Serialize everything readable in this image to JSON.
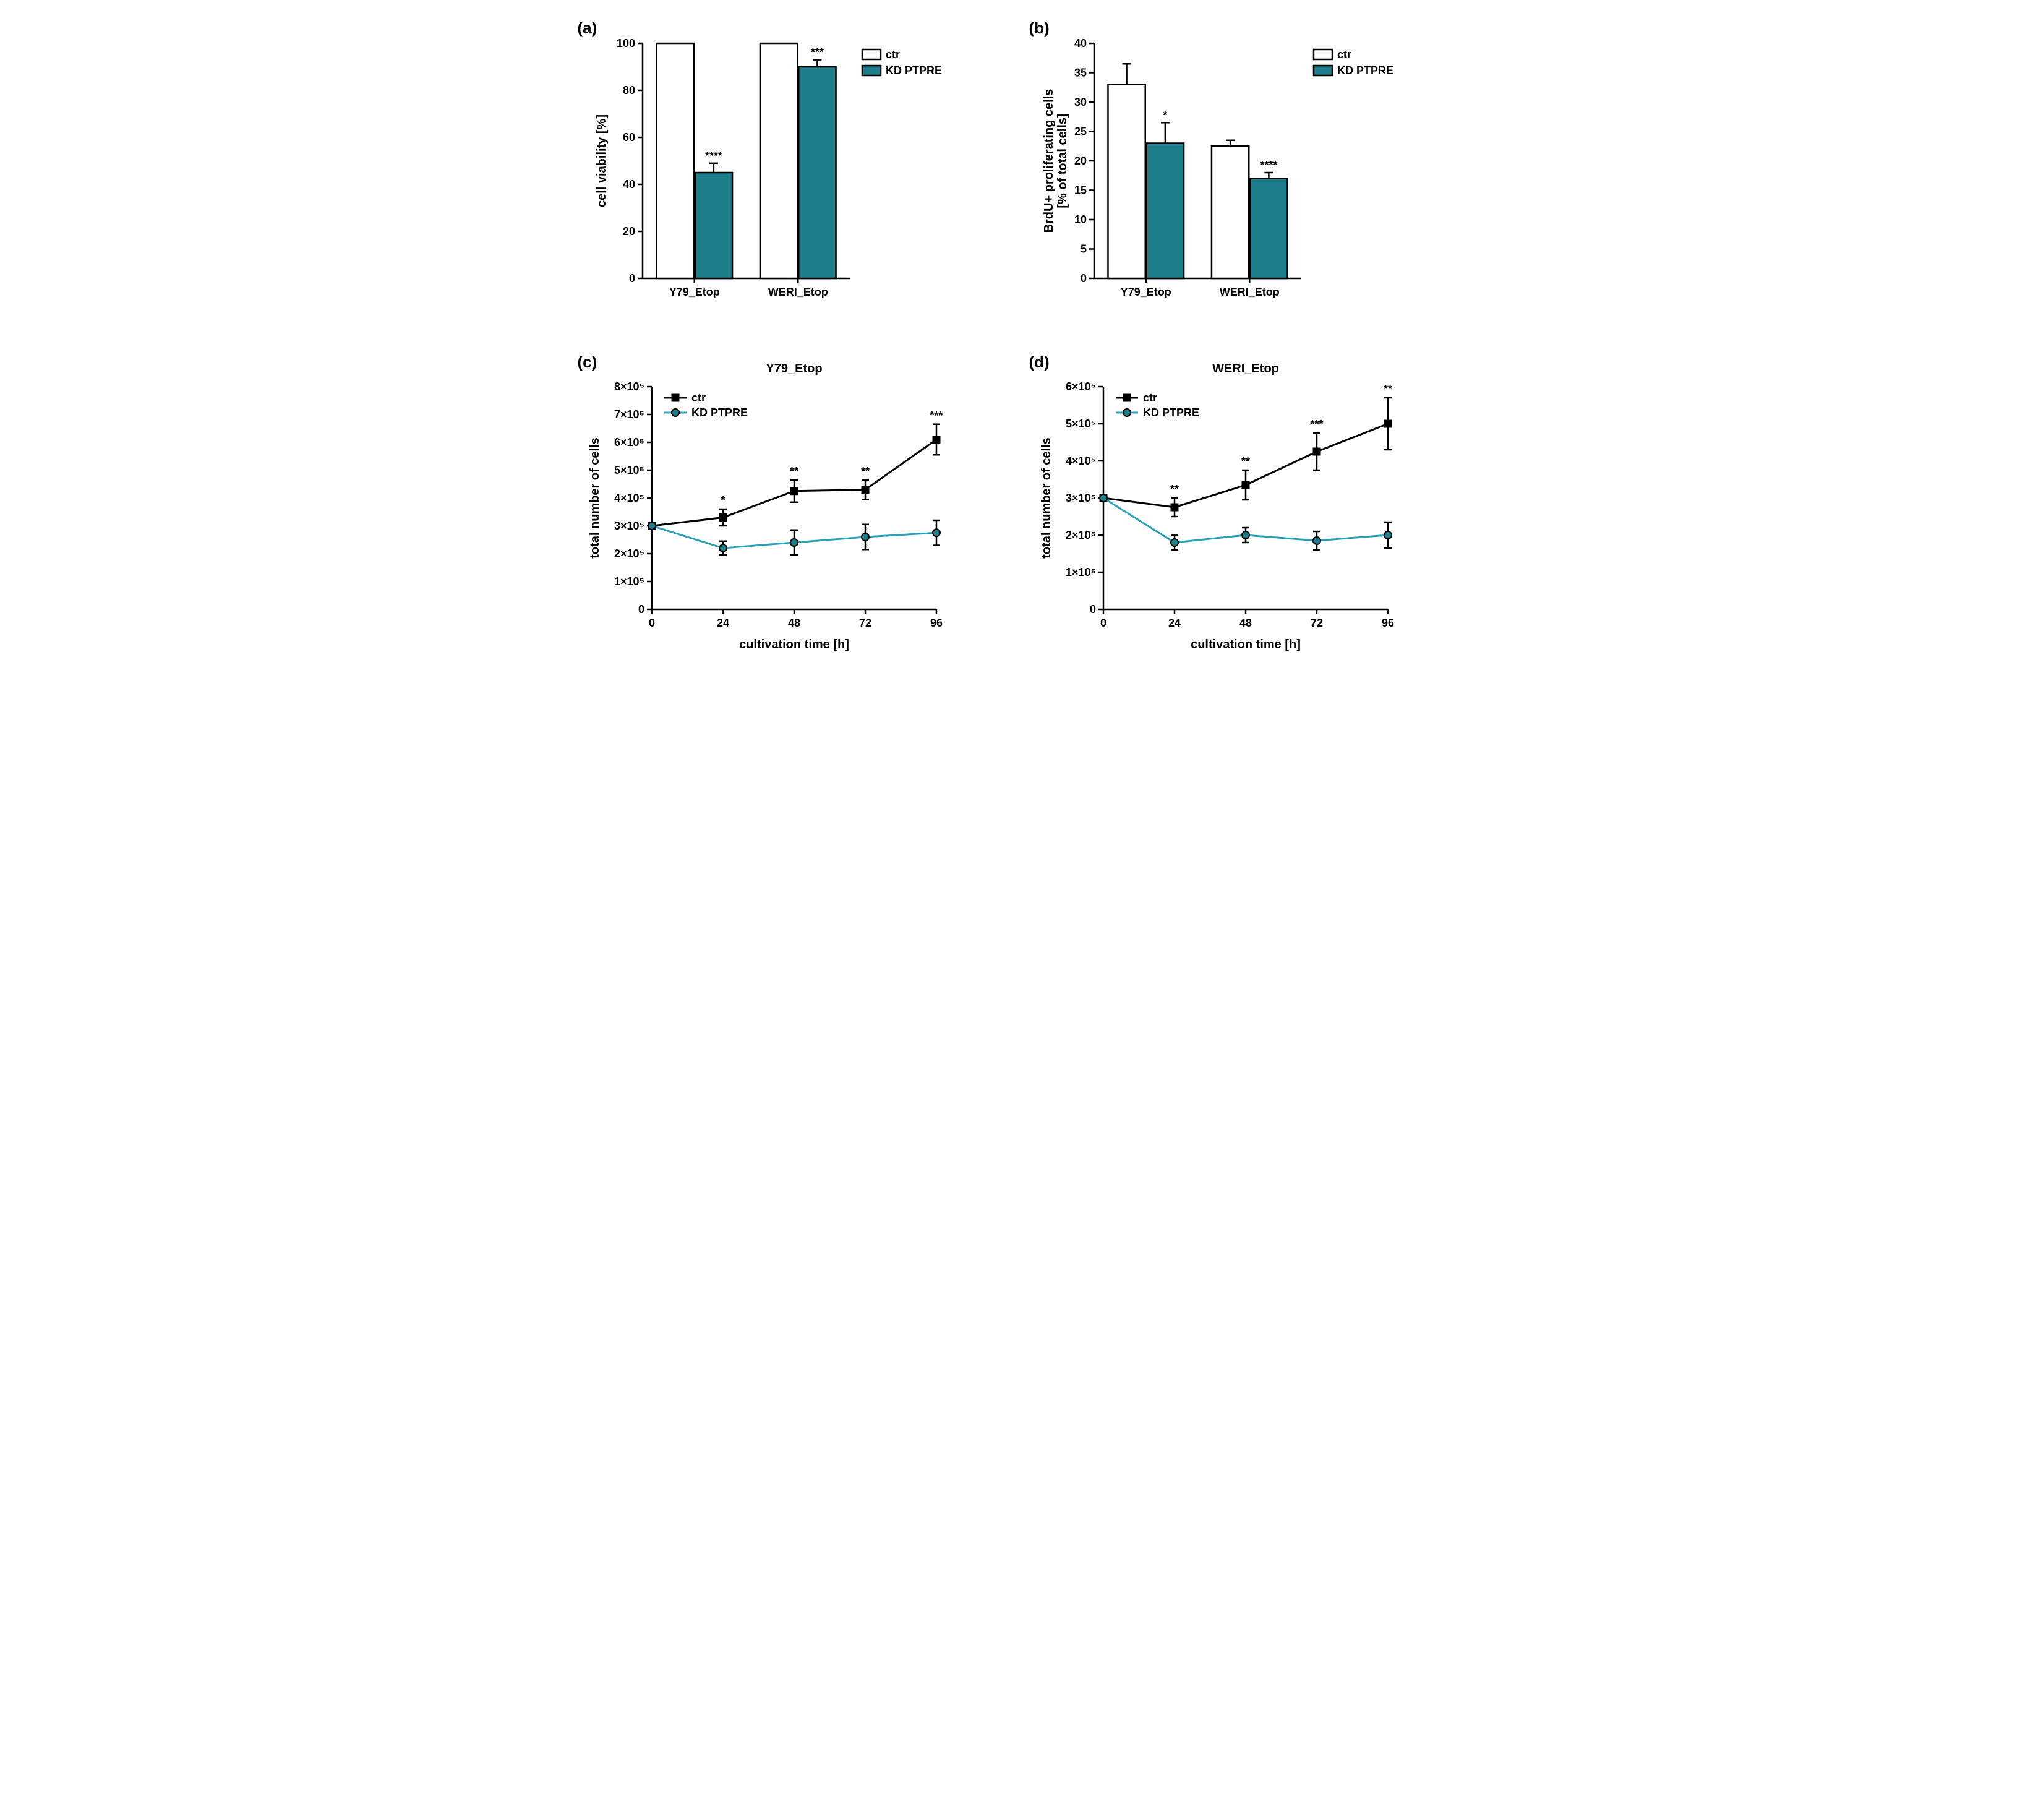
{
  "colors": {
    "ctr_fill": "#ffffff",
    "kd_fill": "#1f7e8c",
    "ctr_line": "#000000",
    "kd_line": "#2aa0b5",
    "axis": "#000000",
    "bg": "#ffffff"
  },
  "font": {
    "family": "Arial",
    "axis_title_pt": 20,
    "tick_pt": 18,
    "label_pt": 18,
    "title_pt": 20,
    "weight": "bold"
  },
  "panel_a": {
    "label": "(a)",
    "type": "bar",
    "ylabel": "cell viability [%]",
    "ylim": [
      0,
      100
    ],
    "ytick_step": 20,
    "categories": [
      "Y79_Etop",
      "WERI_Etop"
    ],
    "series": [
      {
        "name": "ctr",
        "values": [
          100,
          100
        ],
        "err": [
          0,
          0
        ],
        "fill": "#ffffff"
      },
      {
        "name": "KD PTPRE",
        "values": [
          45,
          90
        ],
        "err": [
          4,
          3
        ],
        "fill": "#1f7e8c",
        "sig": [
          "****",
          "***"
        ]
      }
    ],
    "legend": [
      "ctr",
      "KD PTPRE"
    ],
    "bar_width": 0.36,
    "group_gap": 0.25
  },
  "panel_b": {
    "label": "(b)",
    "type": "bar",
    "ylabel_line1": "BrdU+ proliferating cells",
    "ylabel_line2": "[% of total cells]",
    "ylim": [
      0,
      40
    ],
    "ytick_step": 5,
    "categories": [
      "Y79_Etop",
      "WERI_Etop"
    ],
    "series": [
      {
        "name": "ctr",
        "values": [
          33,
          22.5
        ],
        "err": [
          3.5,
          1
        ],
        "fill": "#ffffff"
      },
      {
        "name": "KD PTPRE",
        "values": [
          23,
          17
        ],
        "err": [
          3.5,
          1
        ],
        "fill": "#1f7e8c",
        "sig": [
          "*",
          "****"
        ]
      }
    ],
    "legend": [
      "ctr",
      "KD PTPRE"
    ],
    "bar_width": 0.36,
    "group_gap": 0.25
  },
  "panel_c": {
    "label": "(c)",
    "type": "line",
    "title": "Y79_Etop",
    "xlabel": "cultivation time [h]",
    "ylabel": "total number of cells",
    "xlim": [
      0,
      96
    ],
    "xtick_step": 24,
    "ylim": [
      0,
      800000
    ],
    "yticks": [
      0,
      100000,
      200000,
      300000,
      400000,
      500000,
      600000,
      700000,
      800000
    ],
    "ytick_labels": [
      "0",
      "1×10⁵",
      "2×10⁵",
      "3×10⁵",
      "4×10⁵",
      "5×10⁵",
      "6×10⁵",
      "7×10⁵",
      "8×10⁵"
    ],
    "series": [
      {
        "name": "ctr",
        "marker": "square",
        "color": "#000000",
        "x": [
          0,
          24,
          48,
          72,
          96
        ],
        "y": [
          300000,
          330000,
          425000,
          430000,
          610000
        ],
        "err": [
          0,
          30000,
          40000,
          35000,
          55000
        ],
        "sig": [
          "",
          "*",
          "**",
          "**",
          "***"
        ]
      },
      {
        "name": "KD PTPRE",
        "marker": "circle",
        "color": "#2aa0b5",
        "x": [
          0,
          24,
          48,
          72,
          96
        ],
        "y": [
          300000,
          220000,
          240000,
          260000,
          275000
        ],
        "err": [
          0,
          25000,
          45000,
          45000,
          45000
        ]
      }
    ],
    "legend": [
      "ctr",
      "KD PTPRE"
    ]
  },
  "panel_d": {
    "label": "(d)",
    "type": "line",
    "title": "WERI_Etop",
    "xlabel": "cultivation time [h]",
    "ylabel": "total number of cells",
    "xlim": [
      0,
      96
    ],
    "xtick_step": 24,
    "ylim": [
      0,
      600000
    ],
    "yticks": [
      0,
      100000,
      200000,
      300000,
      400000,
      500000,
      600000
    ],
    "ytick_labels": [
      "0",
      "1×10⁵",
      "2×10⁵",
      "3×10⁵",
      "4×10⁵",
      "5×10⁵",
      "6×10⁵"
    ],
    "series": [
      {
        "name": "ctr",
        "marker": "square",
        "color": "#000000",
        "x": [
          0,
          24,
          48,
          72,
          96
        ],
        "y": [
          300000,
          275000,
          335000,
          425000,
          500000
        ],
        "err": [
          0,
          25000,
          40000,
          50000,
          70000
        ],
        "sig": [
          "",
          "**",
          "**",
          "***",
          "**"
        ]
      },
      {
        "name": "KD PTPRE",
        "marker": "circle",
        "color": "#2aa0b5",
        "x": [
          0,
          24,
          48,
          72,
          96
        ],
        "y": [
          300000,
          180000,
          200000,
          185000,
          200000
        ],
        "err": [
          0,
          20000,
          20000,
          25000,
          35000
        ]
      }
    ],
    "legend": [
      "ctr",
      "KD PTPRE"
    ]
  }
}
